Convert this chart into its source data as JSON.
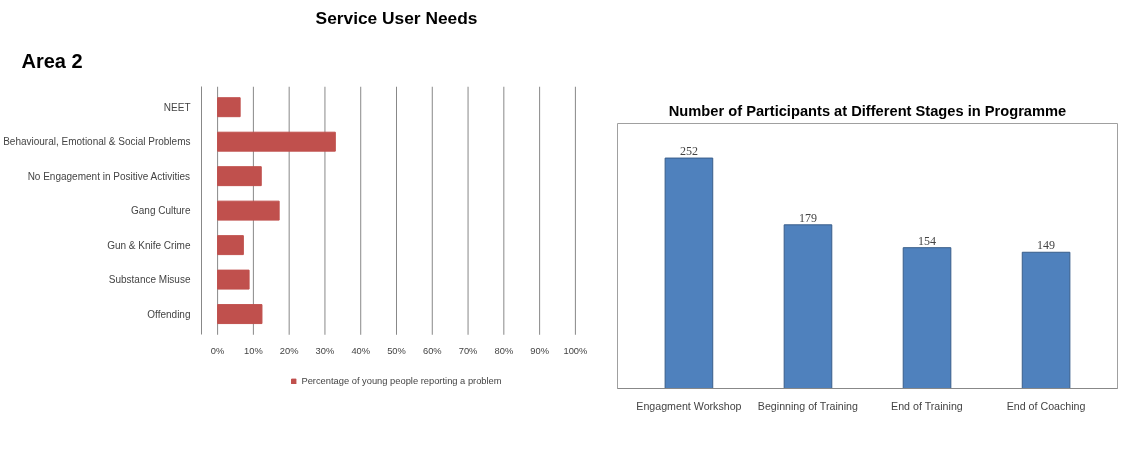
{
  "chart_data": [
    {
      "type": "bar",
      "orientation": "horizontal",
      "title": "Service User Needs",
      "annotations": [
        "Area 2"
      ],
      "categories": [
        "NEET",
        "Behavioural, Emotional & Social Problems",
        "No Engagement in Positive Activities",
        "Gang Culture",
        "Gun & Knife Crime",
        "Substance Misuse",
        "Offending"
      ],
      "series": [
        {
          "name": "Percentage of young people reporting a problem",
          "color": "#c0504d",
          "values": [
            6.3,
            32.9,
            12.2,
            17.2,
            7.2,
            8.8,
            12.4
          ]
        }
      ],
      "xlim": [
        0,
        100
      ],
      "xticks": [
        {
          "value": 0,
          "label": "0%"
        },
        {
          "value": 10,
          "label": "10%"
        },
        {
          "value": 20,
          "label": "20%"
        },
        {
          "value": 30,
          "label": "30%"
        },
        {
          "value": 40,
          "label": "40%"
        },
        {
          "value": 50,
          "label": "50%"
        },
        {
          "value": 60,
          "label": "60%"
        },
        {
          "value": 70,
          "label": "70%"
        },
        {
          "value": 80,
          "label": "80%"
        },
        {
          "value": 90,
          "label": "90%"
        },
        {
          "value": 100,
          "label": "100%"
        }
      ],
      "grid": "x",
      "legend": "bottom"
    },
    {
      "type": "bar",
      "title": "Number of Participants at Different Stages in Programme",
      "categories": [
        "Engagment Workshop",
        "Beginning of Training",
        "End of Training",
        "End of Coaching"
      ],
      "series": [
        {
          "color": "#4f81bd",
          "values": [
            252,
            179,
            154,
            149
          ]
        }
      ],
      "data_labels": true
    }
  ]
}
